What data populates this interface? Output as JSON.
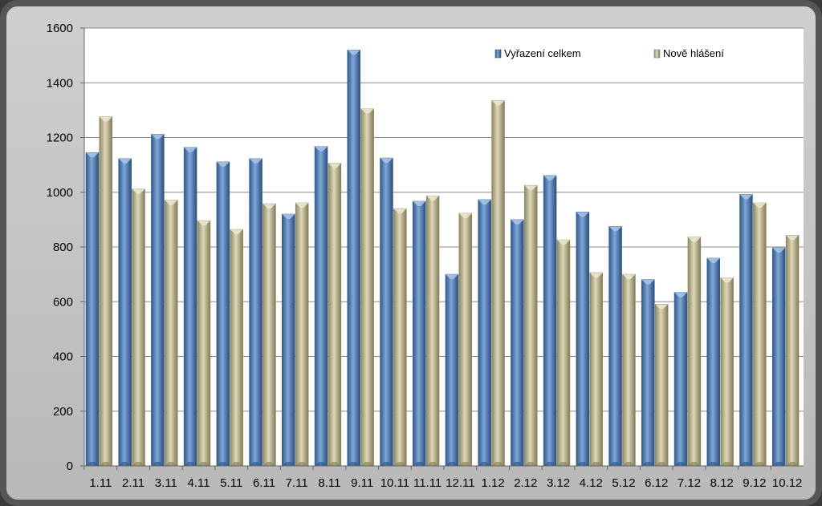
{
  "chart_data": {
    "type": "bar",
    "categories": [
      "1.11",
      "2.11",
      "3.11",
      "4.11",
      "5.11",
      "6.11",
      "7.11",
      "8.11",
      "9.11",
      "10.11",
      "11.11",
      "12.11",
      "1.12",
      "2.12",
      "3.12",
      "4.12",
      "5.12",
      "6.12",
      "7.12",
      "8.12",
      "9.12",
      "10.12"
    ],
    "series": [
      {
        "name": "Vyřazení celkem",
        "color": "#4f81bd",
        "values": [
          1145,
          1123,
          1212,
          1164,
          1111,
          1123,
          920,
          1167,
          1520,
          1125,
          967,
          700,
          973,
          900,
          1061,
          928,
          875,
          681,
          634,
          759,
          992,
          797
        ]
      },
      {
        "name": "Nově hlášení",
        "color": "#c4bd97",
        "values": [
          1276,
          1012,
          971,
          896,
          864,
          958,
          961,
          1106,
          1305,
          940,
          987,
          923,
          1335,
          1025,
          826,
          706,
          700,
          591,
          836,
          687,
          961,
          843
        ]
      }
    ],
    "y_ticks": [
      "0",
      "200",
      "400",
      "600",
      "800",
      "1000",
      "1200",
      "1400",
      "1600"
    ],
    "ylim": [
      0,
      1600
    ],
    "grid": true,
    "legend_position": "top-right",
    "title": "",
    "xlabel": "",
    "ylabel": ""
  }
}
